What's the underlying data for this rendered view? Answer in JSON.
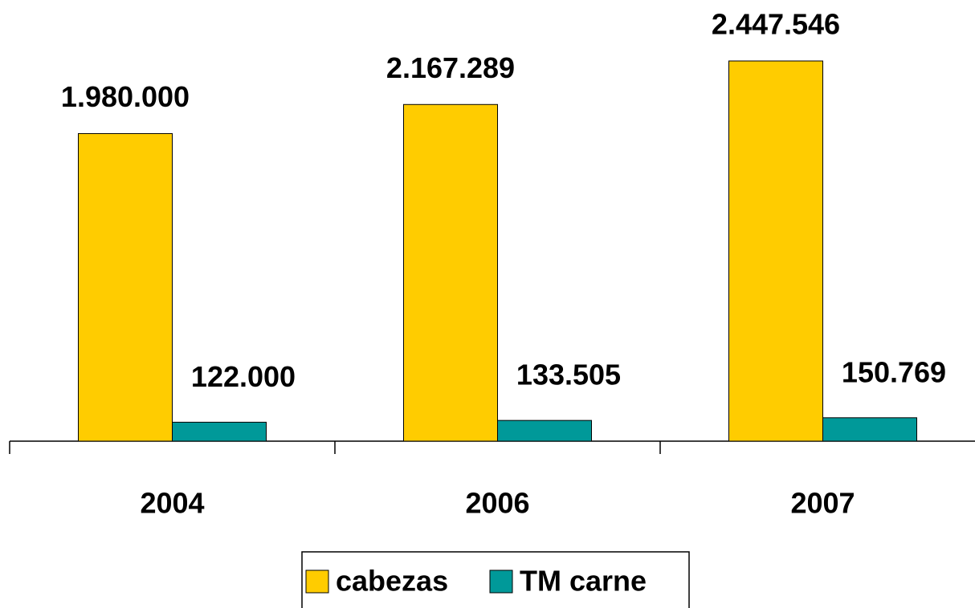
{
  "chart_data": {
    "type": "bar",
    "categories": [
      "2004",
      "2006",
      "2007"
    ],
    "series": [
      {
        "name": "cabezas",
        "color": "#ffcc00",
        "values": [
          1980000,
          2167289,
          2447546
        ],
        "value_labels": [
          "1.980.000",
          "2.167.289",
          "2.447.546"
        ]
      },
      {
        "name": "TM carne",
        "color": "#009999",
        "values": [
          122000,
          133505,
          150769
        ],
        "value_labels": [
          "122.000",
          "133.505",
          "150.769"
        ]
      }
    ]
  }
}
